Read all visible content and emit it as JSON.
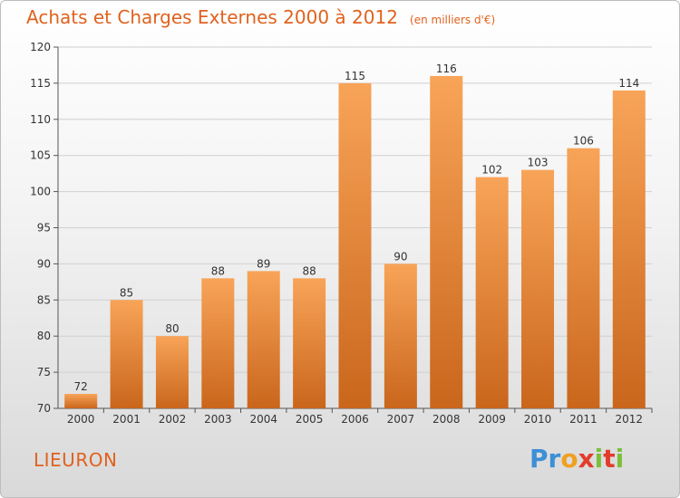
{
  "header": {
    "title": "Achats et Charges Externes 2000 à 2012",
    "unit": "(en milliers d'€)"
  },
  "footer": {
    "commune": "LIEURON",
    "logo_letters": [
      "P",
      "r",
      "o",
      "x",
      "i",
      "t",
      "i"
    ],
    "logo_colors": [
      "#3d8fd6",
      "#3d8fd6",
      "#f0a020",
      "#e23c2c",
      "#7bbf3a",
      "#e23c2c",
      "#7bbf3a"
    ]
  },
  "chart_data": {
    "type": "bar",
    "categories": [
      "2000",
      "2001",
      "2002",
      "2003",
      "2004",
      "2005",
      "2006",
      "2007",
      "2008",
      "2009",
      "2010",
      "2011",
      "2012"
    ],
    "values": [
      72,
      85,
      80,
      88,
      89,
      88,
      115,
      90,
      116,
      102,
      103,
      106,
      114
    ],
    "ylim": [
      70,
      120
    ],
    "yticks": [
      70,
      75,
      80,
      85,
      90,
      95,
      100,
      105,
      110,
      115,
      120
    ],
    "grid": true,
    "bar_color_top": "#f8a458",
    "bar_color_bottom": "#c9661c"
  }
}
